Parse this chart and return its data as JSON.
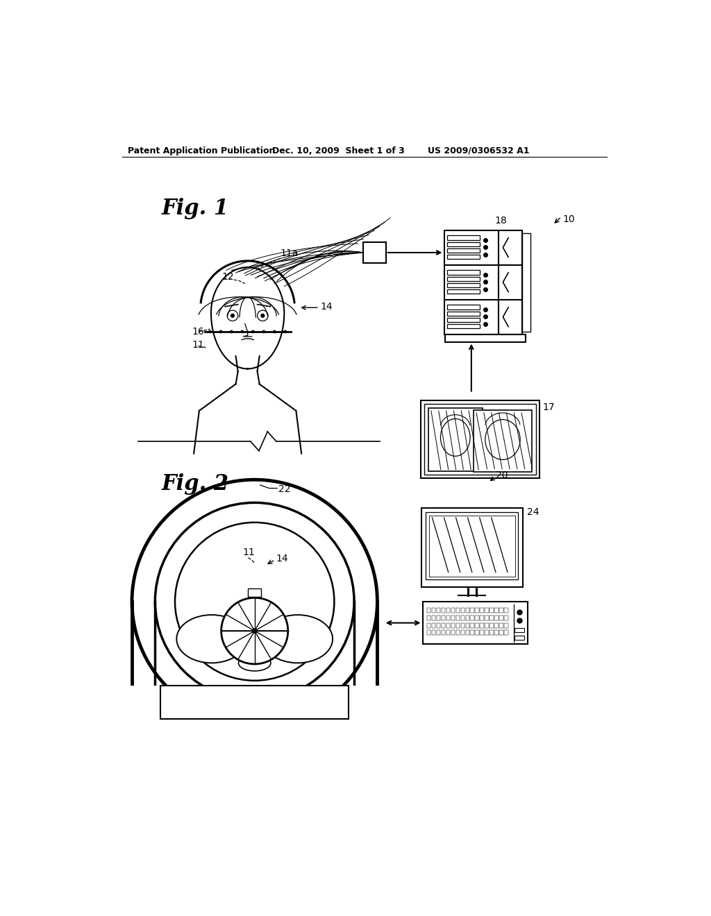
{
  "bg_color": "#ffffff",
  "line_color": "#000000",
  "header_left": "Patent Application Publication",
  "header_mid": "Dec. 10, 2009  Sheet 1 of 3",
  "header_right": "US 2009/0306532 A1",
  "fig1_label": "Fig. 1",
  "fig2_label": "Fig. 2",
  "label_10": "10",
  "label_11": "11",
  "label_11a": "11a",
  "label_12": "12",
  "label_14_fig1": "14",
  "label_16": "16",
  "label_17": "17",
  "label_18": "18",
  "label_20": "20",
  "label_22": "22",
  "label_24": "24",
  "label_11_fig2": "11",
  "label_14_fig2": "14"
}
